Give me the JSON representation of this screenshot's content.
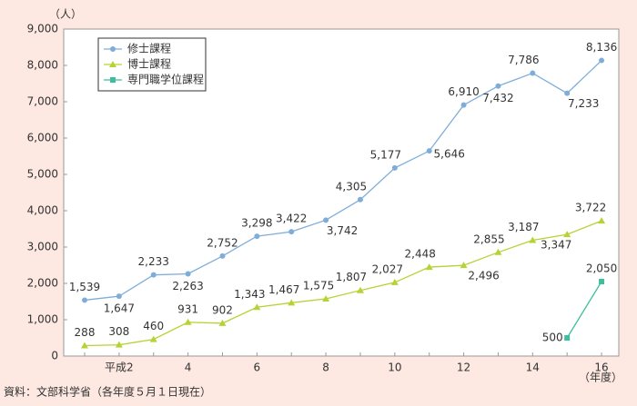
{
  "chart_data": {
    "type": "line",
    "y_unit": "（人）",
    "x_unit": "（年度）",
    "source": "資料：文部科学省（各年度５月１日現在）",
    "categories": [
      null,
      "平成2",
      null,
      "4",
      null,
      "6",
      null,
      "8",
      null,
      "10",
      null,
      "12",
      null,
      "14",
      null,
      "16"
    ],
    "ylim": [
      0,
      9000
    ],
    "yticks": [
      0,
      {
        "value": 1000,
        "label": "1,000"
      },
      {
        "value": 2000,
        "label": "2,000"
      },
      {
        "value": 3000,
        "label": "3,000"
      },
      {
        "value": 4000,
        "label": "4,000"
      },
      {
        "value": 5000,
        "label": "5,000"
      },
      {
        "value": 6000,
        "label": "6,000"
      },
      {
        "value": 7000,
        "label": "7,000"
      },
      {
        "value": 8000,
        "label": "8,000"
      },
      {
        "value": 9000,
        "label": "9,000"
      }
    ],
    "grid": false,
    "legend": "upper left",
    "series": [
      {
        "name": "修士課程",
        "color": "#7fadd9",
        "marker": "circle",
        "values": [
          1539,
          1647,
          2233,
          2263,
          2752,
          3298,
          3422,
          3742,
          4305,
          5177,
          5646,
          6910,
          7432,
          7786,
          7233,
          8136
        ],
        "value_labels": [
          "1,539",
          "1,647",
          "2,233",
          "2,263",
          "2,752",
          "3,298",
          "3,422",
          "3,742",
          "4,305",
          "5,177",
          "5,646",
          "6,910",
          "7,432",
          "7,786",
          "7,233",
          "8,136"
        ]
      },
      {
        "name": "博士課程",
        "color": "#b5d335",
        "marker": "triangle",
        "values": [
          288,
          308,
          460,
          931,
          902,
          1343,
          1467,
          1575,
          1807,
          2027,
          2448,
          2496,
          2855,
          3187,
          3347,
          3722
        ],
        "value_labels": [
          "288",
          "308",
          "460",
          "931",
          "902",
          "1,343",
          "1,467",
          "1,575",
          "1,807",
          "2,027",
          "2,448",
          "2,496",
          "2,855",
          "3,187",
          "3,347",
          "3,722"
        ]
      },
      {
        "name": "専門職学位課程",
        "color": "#3dbf9f",
        "marker": "square",
        "values": [
          null,
          null,
          null,
          null,
          null,
          null,
          null,
          null,
          null,
          null,
          null,
          null,
          null,
          null,
          500,
          2050
        ],
        "value_labels": [
          null,
          null,
          null,
          null,
          null,
          null,
          null,
          null,
          null,
          null,
          null,
          null,
          null,
          null,
          "500",
          "2,050"
        ]
      }
    ]
  }
}
